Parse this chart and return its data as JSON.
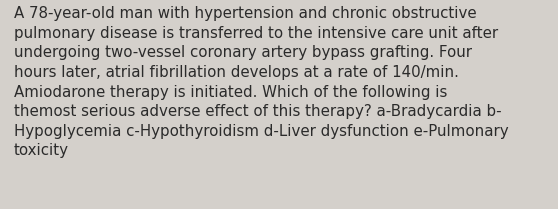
{
  "lines": [
    "A 78-year-old man with hypertension and chronic obstructive",
    "pulmonary disease is transferred to the intensive care unit after",
    "undergoing two-vessel coronary artery bypass grafting. Four",
    "hours later, atrial fibrillation develops at a rate of 140/min.",
    "Amiodarone therapy is initiated. Which of the following is",
    "themost serious adverse effect of this therapy? a-Bradycardia b-",
    "Hypoglycemia c-Hypothyroidism d-Liver dysfunction e-Pulmonary",
    "toxicity"
  ],
  "background_color": "#d4d0cb",
  "text_color": "#2b2b2b",
  "font_size": 10.8,
  "font_family": "DejaVu Sans",
  "fig_width": 5.58,
  "fig_height": 2.09,
  "dpi": 100
}
